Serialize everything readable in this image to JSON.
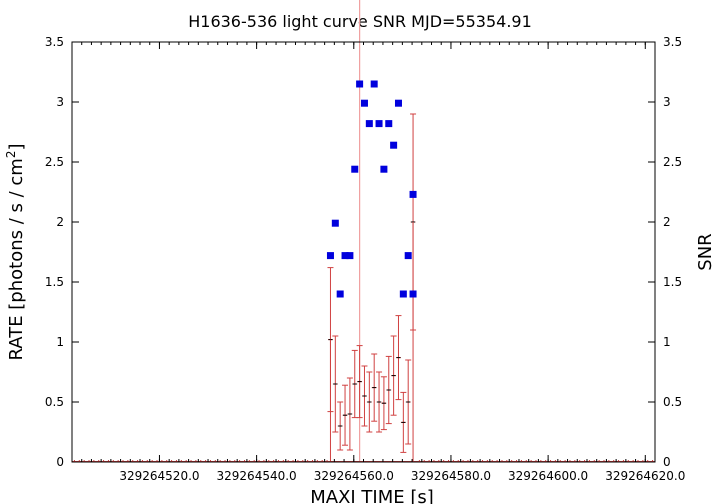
{
  "chart_data": {
    "type": "scatter",
    "title": "H1636-536 light curve  SNR MJD=55354.91",
    "xlabel": "MAXI TIME [s]",
    "ylabel_main": "RATE [photons / s / cm",
    "ylabel_sup": "2",
    "ylabel_close": "]",
    "y2label": "SNR",
    "xlim": [
      329264502,
      329264622
    ],
    "ylim": [
      0,
      3.5
    ],
    "y2lim": [
      0,
      3.5
    ],
    "grid": false,
    "marker_line_x": 329264561.2,
    "x_ticks": [
      329264520,
      329264540,
      329264560,
      329264580,
      329264600,
      329264620
    ],
    "x_tick_labels": [
      "329264520.0",
      "329264540.0",
      "329264560.0",
      "329264580.0",
      "329264600.0",
      "329264620.0"
    ],
    "y_ticks": [
      0,
      0.5,
      1,
      1.5,
      2,
      2.5,
      3,
      3.5
    ],
    "y_tick_labels": [
      "0",
      "0.5",
      "1",
      "1.5",
      "2",
      "2.5",
      "3",
      "3.5"
    ],
    "colors": {
      "rate": "#d04040",
      "snr": "#0000dd",
      "marker_line": "#f0a0a0"
    },
    "series": [
      {
        "name": "",
        "style": "errorbar",
        "x": [
          329264555.2,
          329264556.2,
          329264557.2,
          329264558.2,
          329264559.2,
          329264560.2,
          329264561.2,
          329264562.2,
          329264563.2,
          329264564.2,
          329264565.2,
          329264566.2,
          329264567.2,
          329264568.2,
          329264569.2,
          329264570.2,
          329264571.2,
          329264572.2
        ],
        "y": [
          1.02,
          0.65,
          0.3,
          0.39,
          0.4,
          0.65,
          0.67,
          0.55,
          0.5,
          0.62,
          0.5,
          0.49,
          0.6,
          0.72,
          0.87,
          0.33,
          0.5,
          2.0
        ],
        "yerr": [
          0.6,
          0.4,
          0.2,
          0.25,
          0.3,
          0.28,
          0.3,
          0.25,
          0.25,
          0.28,
          0.25,
          0.22,
          0.28,
          0.33,
          0.35,
          0.25,
          0.35,
          0.9
        ]
      },
      {
        "name": "",
        "style": "square",
        "x": [
          329264555.2,
          329264556.2,
          329264557.2,
          329264558.2,
          329264559.2,
          329264560.2,
          329264561.2,
          329264562.2,
          329264563.2,
          329264564.2,
          329264565.2,
          329264566.2,
          329264567.2,
          329264568.2,
          329264569.2,
          329264570.2,
          329264571.2,
          329264572.2
        ],
        "y": [
          1.72,
          1.99,
          1.4,
          1.72,
          1.72,
          2.44,
          3.15,
          2.99,
          2.82,
          3.15,
          2.82,
          2.44,
          2.82,
          2.64,
          2.99,
          1.4,
          1.72,
          1.4
        ]
      }
    ],
    "extra_points": [
      {
        "x": 329264572.2,
        "y": 2.23
      }
    ]
  }
}
